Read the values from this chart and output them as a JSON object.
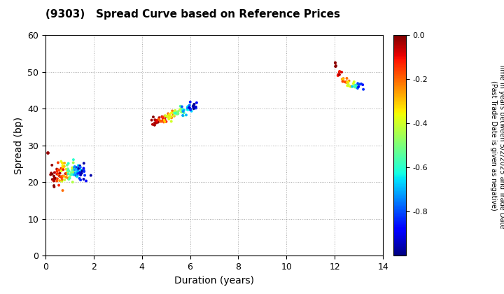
{
  "title": "(9303)   Spread Curve based on Reference Prices",
  "xlabel": "Duration (years)",
  "ylabel": "Spread (bp)",
  "xlim": [
    0,
    14
  ],
  "ylim": [
    0,
    60
  ],
  "xticks": [
    0,
    2,
    4,
    6,
    8,
    10,
    12,
    14
  ],
  "yticks": [
    0,
    10,
    20,
    30,
    40,
    50,
    60
  ],
  "colorbar_label": "Time in years between 5/2/2025 and Trade Date\n(Past Trade Date is given as negative)",
  "colorbar_vmin": -1.0,
  "colorbar_vmax": 0.0,
  "colorbar_ticks": [
    0.0,
    -0.2,
    -0.4,
    -0.6,
    -0.8
  ],
  "background_color": "#ffffff",
  "marker_size": 8
}
